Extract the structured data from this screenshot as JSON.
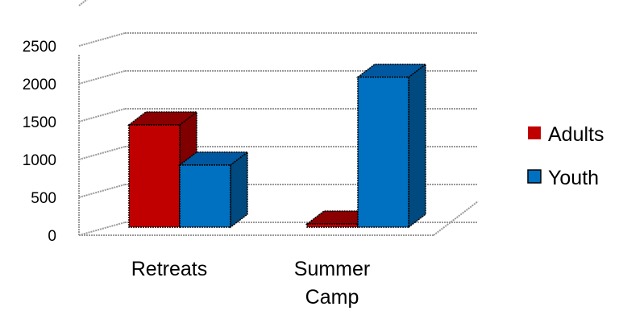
{
  "chart_data": {
    "type": "bar",
    "categories": [
      "Retreats",
      "Summer Camp"
    ],
    "category_lines": [
      [
        "Retreats"
      ],
      [
        "Summer",
        "Camp"
      ]
    ],
    "series": [
      {
        "name": "Adults",
        "values": [
          1500,
          70
        ],
        "color": "#c00000",
        "top_color": "#8b0000",
        "side_color": "#800000"
      },
      {
        "name": "Youth",
        "values": [
          970,
          2130
        ],
        "color": "#0070c0",
        "top_color": "#0058a0",
        "side_color": "#004a80"
      }
    ],
    "y_ticks": [
      0,
      500,
      1000,
      1500,
      2000,
      2500
    ],
    "ylim": [
      0,
      2500
    ],
    "title": "",
    "xlabel": "",
    "ylabel": "",
    "grid": true,
    "legend": "right",
    "style": "3d-clustered-column"
  }
}
